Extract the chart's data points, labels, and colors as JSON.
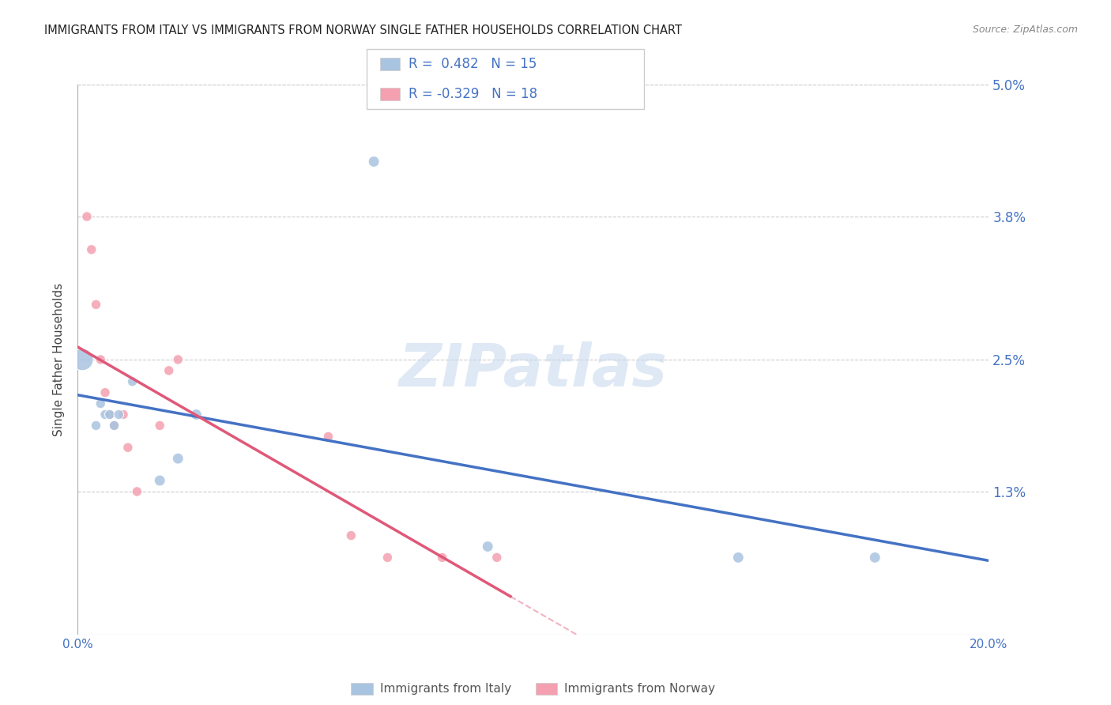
{
  "title": "IMMIGRANTS FROM ITALY VS IMMIGRANTS FROM NORWAY SINGLE FATHER HOUSEHOLDS CORRELATION CHART",
  "source": "Source: ZipAtlas.com",
  "ylabel": "Single Father Households",
  "watermark": "ZIPatlas",
  "italy_R": 0.482,
  "italy_N": 15,
  "norway_R": -0.329,
  "norway_N": 18,
  "italy_color": "#a8c4e0",
  "norway_color": "#f4a0b0",
  "italy_line_color": "#4472c4",
  "norway_line_color": "#e05878",
  "axis_label_color": "#4472c4",
  "title_color": "#222222",
  "background_color": "#ffffff",
  "grid_color": "#cccccc",
  "xlim": [
    0.0,
    0.2
  ],
  "ylim": [
    0.0,
    0.05
  ],
  "yticks": [
    0.0,
    0.013,
    0.025,
    0.038,
    0.05
  ],
  "ytick_labels": [
    "",
    "1.3%",
    "2.5%",
    "3.8%",
    "5.0%"
  ],
  "xticks": [
    0.0,
    0.04,
    0.08,
    0.12,
    0.16,
    0.2
  ],
  "xtick_labels": [
    "0.0%",
    "",
    "",
    "",
    "",
    "20.0%"
  ],
  "italy_x": [
    0.001,
    0.004,
    0.005,
    0.006,
    0.007,
    0.008,
    0.009,
    0.012,
    0.018,
    0.022,
    0.026,
    0.065,
    0.09,
    0.145,
    0.175
  ],
  "italy_y": [
    0.025,
    0.019,
    0.021,
    0.02,
    0.02,
    0.019,
    0.02,
    0.023,
    0.014,
    0.016,
    0.02,
    0.043,
    0.008,
    0.007,
    0.007
  ],
  "italy_sizes": [
    400,
    80,
    80,
    80,
    80,
    80,
    80,
    80,
    100,
    100,
    100,
    100,
    100,
    100,
    100
  ],
  "norway_x": [
    0.002,
    0.003,
    0.004,
    0.005,
    0.006,
    0.007,
    0.008,
    0.01,
    0.011,
    0.013,
    0.018,
    0.02,
    0.022,
    0.055,
    0.06,
    0.068,
    0.08,
    0.092
  ],
  "norway_y": [
    0.038,
    0.035,
    0.03,
    0.025,
    0.022,
    0.02,
    0.019,
    0.02,
    0.017,
    0.013,
    0.019,
    0.024,
    0.025,
    0.018,
    0.009,
    0.007,
    0.007,
    0.007
  ],
  "norway_sizes": [
    80,
    80,
    80,
    80,
    80,
    80,
    80,
    80,
    80,
    80,
    80,
    80,
    80,
    80,
    80,
    80,
    80,
    80
  ]
}
